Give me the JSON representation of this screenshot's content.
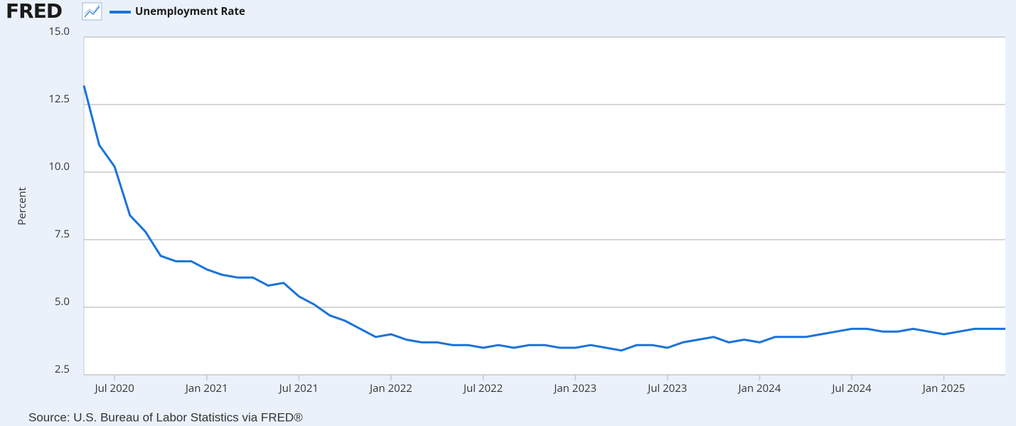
{
  "brand": "FRED",
  "chart_data": {
    "type": "line",
    "y_label": "Percent",
    "source": "Source: U.S. Bureau of Labor Statistics via FRED®",
    "x": [
      "2020-05",
      "2020-06",
      "2020-07",
      "2020-08",
      "2020-09",
      "2020-10",
      "2020-11",
      "2020-12",
      "2021-01",
      "2021-02",
      "2021-03",
      "2021-04",
      "2021-05",
      "2021-06",
      "2021-07",
      "2021-08",
      "2021-09",
      "2021-10",
      "2021-11",
      "2021-12",
      "2022-01",
      "2022-02",
      "2022-03",
      "2022-04",
      "2022-05",
      "2022-06",
      "2022-07",
      "2022-08",
      "2022-09",
      "2022-10",
      "2022-11",
      "2022-12",
      "2023-01",
      "2023-02",
      "2023-03",
      "2023-04",
      "2023-05",
      "2023-06",
      "2023-07",
      "2023-08",
      "2023-09",
      "2023-10",
      "2023-11",
      "2023-12",
      "2024-01",
      "2024-02",
      "2024-03",
      "2024-04",
      "2024-05",
      "2024-06",
      "2024-07",
      "2024-08",
      "2024-09",
      "2024-10",
      "2024-11",
      "2024-12",
      "2025-01",
      "2025-02",
      "2025-03",
      "2025-04",
      "2025-05"
    ],
    "series": [
      {
        "name": "Unemployment Rate",
        "color": "#1a73d9",
        "values": [
          13.2,
          11.0,
          10.2,
          8.4,
          7.8,
          6.9,
          6.7,
          6.7,
          6.4,
          6.2,
          6.1,
          6.1,
          5.8,
          5.9,
          5.4,
          5.1,
          4.7,
          4.5,
          4.2,
          3.9,
          4.0,
          3.8,
          3.7,
          3.7,
          3.6,
          3.6,
          3.5,
          3.6,
          3.5,
          3.6,
          3.6,
          3.5,
          3.5,
          3.6,
          3.5,
          3.4,
          3.6,
          3.6,
          3.5,
          3.7,
          3.8,
          3.9,
          3.7,
          3.8,
          3.7,
          3.9,
          3.9,
          3.9,
          4.0,
          4.1,
          4.2,
          4.2,
          4.1,
          4.1,
          4.2,
          4.1,
          4.0,
          4.1,
          4.2,
          4.2,
          4.2
        ]
      }
    ],
    "xlim": [
      "2020-05",
      "2025-05"
    ],
    "xticks": [
      {
        "value": "2020-07",
        "label": "Jul 2020"
      },
      {
        "value": "2021-01",
        "label": "Jan 2021"
      },
      {
        "value": "2021-07",
        "label": "Jul 2021"
      },
      {
        "value": "2022-01",
        "label": "Jan 2022"
      },
      {
        "value": "2022-07",
        "label": "Jul 2022"
      },
      {
        "value": "2023-01",
        "label": "Jan 2023"
      },
      {
        "value": "2023-07",
        "label": "Jul 2023"
      },
      {
        "value": "2024-01",
        "label": "Jan 2024"
      },
      {
        "value": "2024-07",
        "label": "Jul 2024"
      },
      {
        "value": "2025-01",
        "label": "Jan 2025"
      }
    ],
    "ylim": [
      2.5,
      15
    ],
    "yticks": [
      {
        "value": 2.5,
        "label": "2.5"
      },
      {
        "value": 5,
        "label": "5.0"
      },
      {
        "value": 7.5,
        "label": "7.5"
      },
      {
        "value": 10,
        "label": "10.0"
      },
      {
        "value": 12.5,
        "label": "12.5"
      },
      {
        "value": 15,
        "label": "15.0"
      }
    ],
    "grid": true
  }
}
